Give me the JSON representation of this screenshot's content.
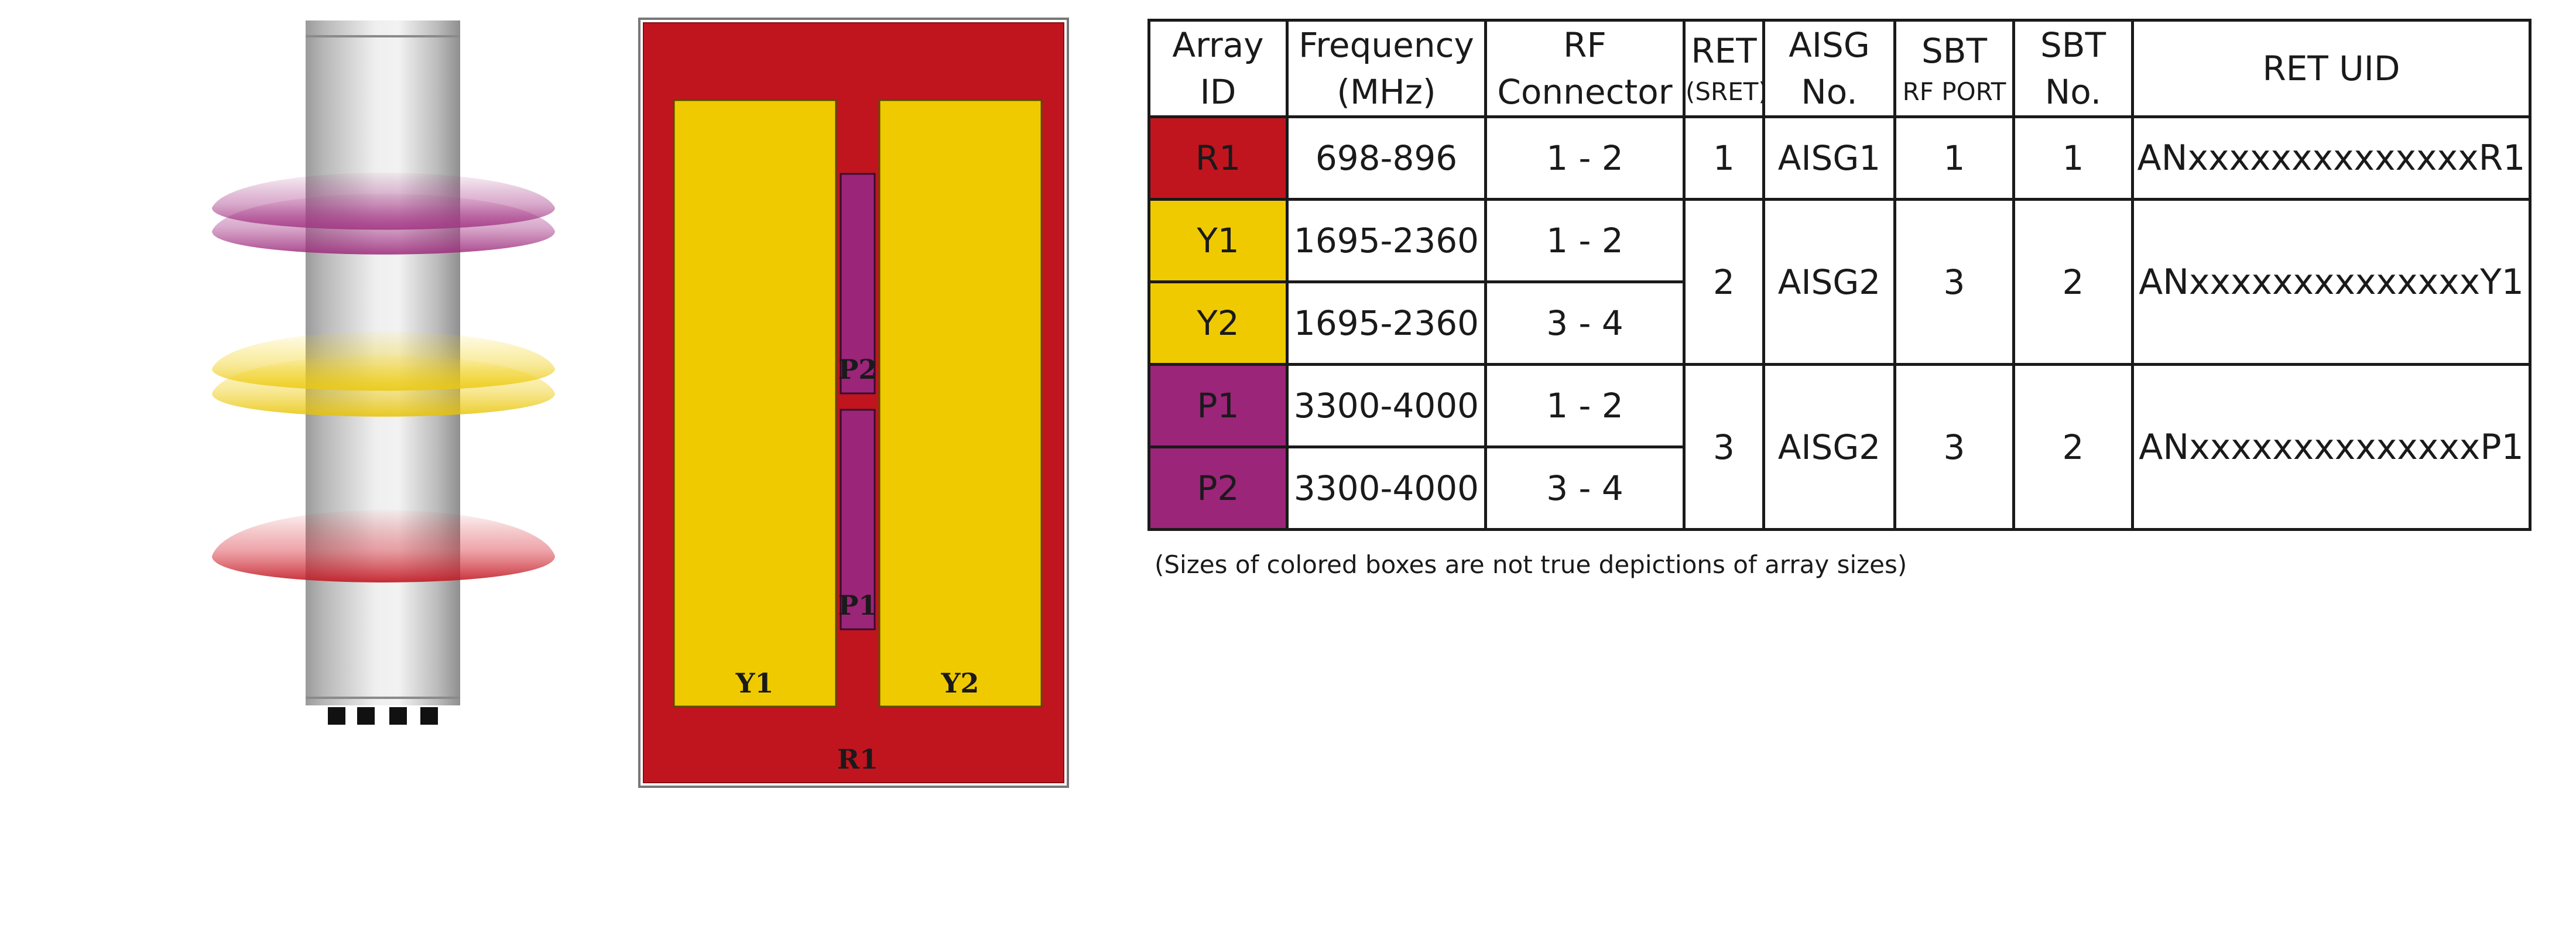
{
  "legend_colors": {
    "red": "#c0151f",
    "yellow": "#efca00",
    "purple": "#9b2579",
    "background": "#ffffff"
  },
  "antenna": {
    "icon": "panel-antenna-with-beam-lobes-icon"
  },
  "layout_diagram": {
    "labels": {
      "r1": "R1",
      "y1": "Y1",
      "y2": "Y2",
      "p1": "P1",
      "p2": "P2"
    }
  },
  "table": {
    "headers": {
      "array_id": "Array ID",
      "frequency_line1": "Frequency",
      "frequency_line2": "(MHz)",
      "rf_line1": "RF",
      "rf_line2": "Connector",
      "ret_line1": "RET",
      "ret_sub": "(SRET)",
      "aisg_line1": "AISG",
      "aisg_line2": "No.",
      "sbt_port_line1": "SBT",
      "sbt_port_sub": "RF PORT",
      "sbt_no_line1": "SBT",
      "sbt_no_line2": "No.",
      "ret_uid": "RET UID"
    },
    "rows": [
      {
        "array_id": "R1",
        "frequency": "698-896",
        "rf_connector": "1 - 2",
        "ret": "1",
        "aisg": "AISG1",
        "sbt_rf_port": "1",
        "sbt_no": "1",
        "ret_uid": "ANxxxxxxxxxxxxxxR1"
      },
      {
        "array_id": "Y1",
        "frequency": "1695-2360",
        "rf_connector": "1 - 2",
        "ret": "2",
        "aisg": "AISG2",
        "sbt_rf_port": "3",
        "sbt_no": "2",
        "ret_uid": "ANxxxxxxxxxxxxxxY1"
      },
      {
        "array_id": "Y2",
        "frequency": "1695-2360",
        "rf_connector": "3 - 4"
      },
      {
        "array_id": "P1",
        "frequency": "3300-4000",
        "rf_connector": "1 - 2",
        "ret": "3",
        "aisg": "AISG2",
        "sbt_rf_port": "3",
        "sbt_no": "2",
        "ret_uid": "ANxxxxxxxxxxxxxxP1"
      },
      {
        "array_id": "P2",
        "frequency": "3300-4000",
        "rf_connector": "3 - 4"
      }
    ]
  },
  "footnote": "(Sizes of colored boxes are not true depictions of array sizes)"
}
